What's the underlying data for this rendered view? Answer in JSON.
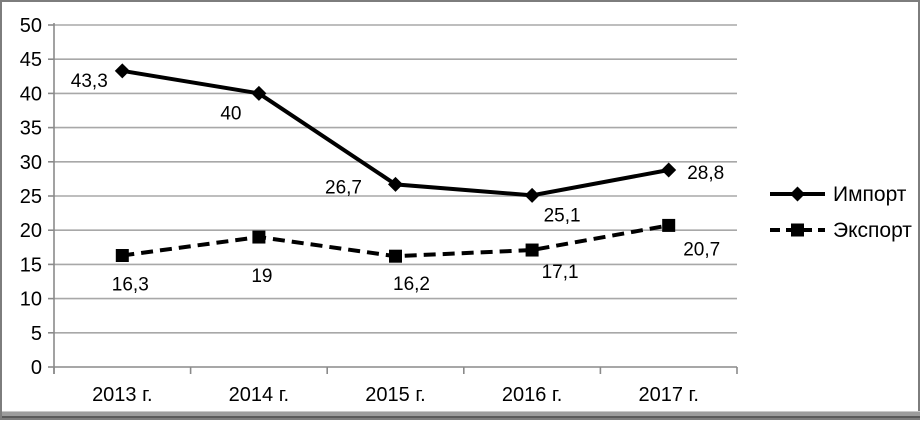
{
  "chart_data": {
    "type": "line",
    "title": "",
    "xlabel": "",
    "ylabel": "",
    "categories": [
      "2013 г.",
      "2014 г.",
      "2015 г.",
      "2016 г.",
      "2017 г."
    ],
    "series": [
      {
        "name": "Импорт",
        "values": [
          43.3,
          40,
          26.7,
          25.1,
          28.8
        ],
        "point_labels": [
          "43,3",
          "40",
          "26,7",
          "25,1",
          "28,8"
        ],
        "marker": "diamond",
        "line_style": "solid"
      },
      {
        "name": "Экспорт",
        "values": [
          16.3,
          19,
          16.2,
          17.1,
          20.7
        ],
        "point_labels": [
          "16,3",
          "19",
          "16,2",
          "17,1",
          "20,7"
        ],
        "marker": "square",
        "line_style": "dashed"
      }
    ],
    "ylim": [
      0,
      50
    ],
    "ytick_step": 5,
    "ytick_labels": [
      "0",
      "5",
      "10",
      "15",
      "20",
      "25",
      "30",
      "35",
      "40",
      "45",
      "50"
    ],
    "grid": true,
    "legend_position": "right"
  },
  "colors": {
    "series_line": "#000000",
    "grid": "#a8a8a8",
    "axis": "#8a8a8a",
    "text": "#000000",
    "frame": "#7d7d7d"
  }
}
